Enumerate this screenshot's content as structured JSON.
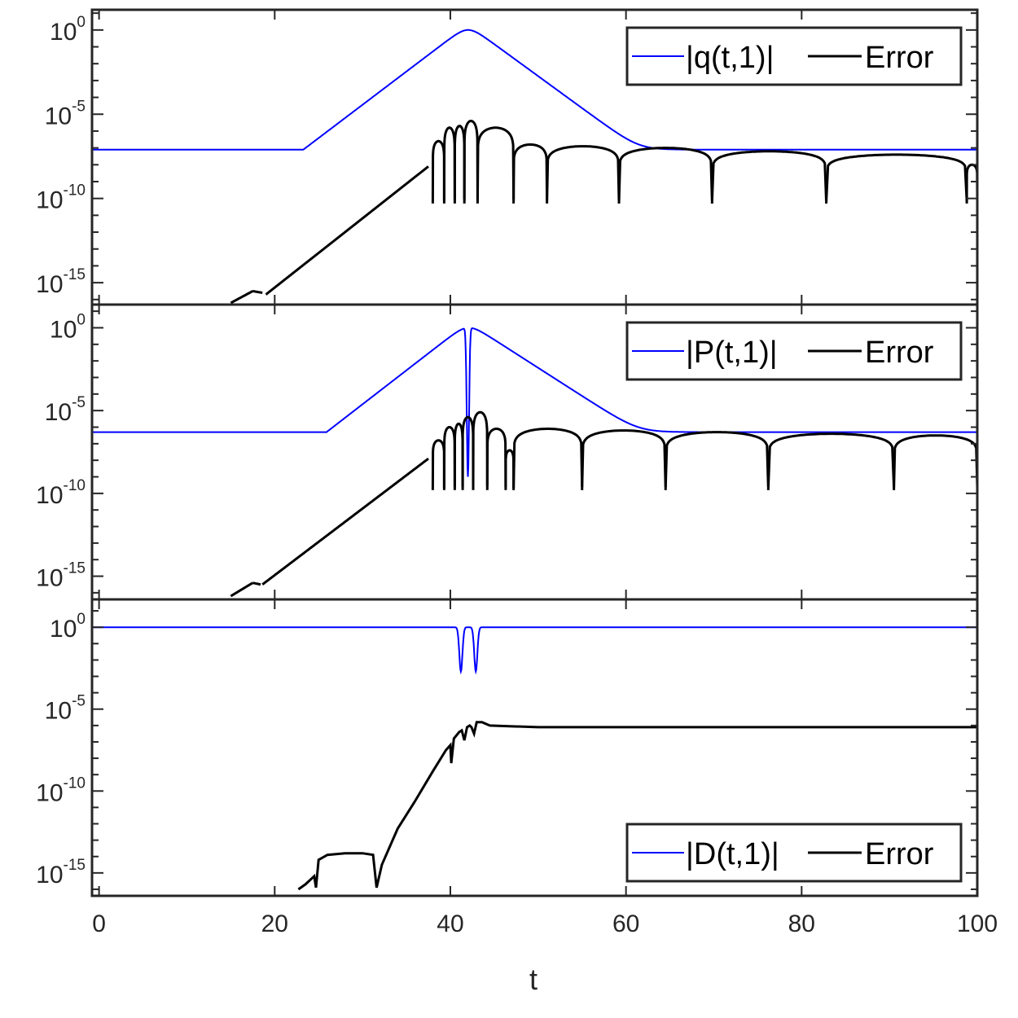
{
  "chart_data": [
    {
      "type": "line",
      "x_axis": {
        "label": "",
        "range": [
          0,
          100
        ],
        "ticks": [
          0,
          20,
          40,
          60,
          80,
          100
        ],
        "tick_labels_visible": false
      },
      "y_axis": {
        "scale": "log",
        "range": [
          1e-16,
          10
        ],
        "ticks": [
          1e-15,
          1e-10,
          1e-05,
          1
        ],
        "tick_labels": [
          {
            "base": "10",
            "exp": "-15"
          },
          {
            "base": "10",
            "exp": "-10"
          },
          {
            "base": "10",
            "exp": "-5"
          },
          {
            "base": "10",
            "exp": "0"
          }
        ]
      },
      "legend": {
        "placement": "top-right",
        "entries": [
          {
            "label": "|q(t,1)|",
            "color": "#0000ff"
          },
          {
            "label": "Error",
            "color": "#000000"
          }
        ]
      },
      "series": [
        {
          "name": "|q(t,1)|",
          "color": "#0000ff",
          "t_peak": 42,
          "peak_log10": 0,
          "slope_up": 0.395,
          "slope_down": 0.38,
          "floor_log10": -7.1,
          "dip_at": [],
          "dip_depth_log10": 0
        },
        {
          "name": "Error",
          "color": "#000000",
          "segments": [
            {
              "t_from": 15,
              "t_to": 17.5,
              "log10_from": -16.2,
              "log10_to": -15.5
            },
            {
              "t_from": 17.5,
              "t_to": 18.6,
              "log10_from": -15.5,
              "log10_to": -15.6
            },
            {
              "t_from": 19,
              "t_to": 37.5,
              "log10_from": -15.7,
              "log10_to": -8.1
            }
          ],
          "humps": [
            {
              "t_from": 38,
              "t_to": 39.3,
              "peak_log10": -6.6
            },
            {
              "t_from": 39.3,
              "t_to": 40.5,
              "peak_log10": -5.8
            },
            {
              "t_from": 40.5,
              "t_to": 41.6,
              "peak_log10": -5.7
            },
            {
              "t_from": 41.6,
              "t_to": 43.1,
              "peak_log10": -5.4
            },
            {
              "t_from": 43.1,
              "t_to": 47.2,
              "peak_log10": -5.8
            },
            {
              "t_from": 47.2,
              "t_to": 51,
              "peak_log10": -6.8
            },
            {
              "t_from": 51,
              "t_to": 59.2,
              "peak_log10": -6.9
            },
            {
              "t_from": 59.2,
              "t_to": 69.8,
              "peak_log10": -7.0
            },
            {
              "t_from": 69.8,
              "t_to": 82.8,
              "peak_log10": -7.2
            },
            {
              "t_from": 82.8,
              "t_to": 98.8,
              "peak_log10": -7.4
            },
            {
              "t_from": 98.8,
              "t_to": 100,
              "peak_log10": -8.0
            }
          ],
          "dip_bottom_log10": -10.3
        }
      ]
    },
    {
      "type": "line",
      "x_axis": {
        "label": "",
        "range": [
          0,
          100
        ],
        "ticks": [
          0,
          20,
          40,
          60,
          80,
          100
        ],
        "tick_labels_visible": false
      },
      "y_axis": {
        "scale": "log",
        "range": [
          1e-16,
          10
        ],
        "ticks": [
          1e-15,
          1e-10,
          1e-05,
          1
        ],
        "tick_labels": [
          {
            "base": "10",
            "exp": "-15"
          },
          {
            "base": "10",
            "exp": "-10"
          },
          {
            "base": "10",
            "exp": "-5"
          },
          {
            "base": "10",
            "exp": "0"
          }
        ]
      },
      "legend": {
        "placement": "top-right",
        "entries": [
          {
            "label": "|P(t,1)|",
            "color": "#0000ff"
          },
          {
            "label": "Error",
            "color": "#000000"
          }
        ]
      },
      "series": [
        {
          "name": "|P(t,1)|",
          "color": "#0000ff",
          "t_peak": 42,
          "peak_log10": 0,
          "slope_up": 0.41,
          "slope_down": 0.34,
          "floor_log10": -6.3,
          "dip_at": [
            42
          ],
          "dip_depth_log10": -9.0
        },
        {
          "name": "Error",
          "color": "#000000",
          "segments": [
            {
              "t_from": 15,
              "t_to": 17.5,
              "log10_from": -16.2,
              "log10_to": -15.4
            },
            {
              "t_from": 17.5,
              "t_to": 18.4,
              "log10_from": -15.4,
              "log10_to": -15.5
            },
            {
              "t_from": 18.6,
              "t_to": 37.5,
              "log10_from": -15.5,
              "log10_to": -7.9
            }
          ],
          "humps": [
            {
              "t_from": 38,
              "t_to": 39.3,
              "peak_log10": -6.8
            },
            {
              "t_from": 39.3,
              "t_to": 40.5,
              "peak_log10": -6.0
            },
            {
              "t_from": 40.5,
              "t_to": 41.4,
              "peak_log10": -5.8
            },
            {
              "t_from": 41.4,
              "t_to": 42.6,
              "peak_log10": -5.4
            },
            {
              "t_from": 42.6,
              "t_to": 44.2,
              "peak_log10": -5.1
            },
            {
              "t_from": 44.2,
              "t_to": 46.3,
              "peak_log10": -6.1
            },
            {
              "t_from": 46.3,
              "t_to": 47.2,
              "peak_log10": -7.4
            },
            {
              "t_from": 47.2,
              "t_to": 55,
              "peak_log10": -6.1
            },
            {
              "t_from": 55,
              "t_to": 64.5,
              "peak_log10": -6.2
            },
            {
              "t_from": 64.5,
              "t_to": 76.2,
              "peak_log10": -6.3
            },
            {
              "t_from": 76.2,
              "t_to": 90.5,
              "peak_log10": -6.4
            },
            {
              "t_from": 90.5,
              "t_to": 100,
              "peak_log10": -6.5
            }
          ],
          "dip_bottom_log10": -9.8
        }
      ]
    },
    {
      "type": "line",
      "x_axis": {
        "label": "t",
        "range": [
          0,
          100
        ],
        "ticks": [
          0,
          20,
          40,
          60,
          80,
          100
        ],
        "tick_labels": [
          "0",
          "20",
          "40",
          "60",
          "80",
          "100"
        ]
      },
      "y_axis": {
        "scale": "log",
        "range": [
          1e-16,
          10
        ],
        "ticks": [
          1e-15,
          1e-10,
          1e-05,
          1
        ],
        "tick_labels": [
          {
            "base": "10",
            "exp": "-15"
          },
          {
            "base": "10",
            "exp": "-10"
          },
          {
            "base": "10",
            "exp": "-5"
          },
          {
            "base": "10",
            "exp": "0"
          }
        ]
      },
      "legend": {
        "placement": "bottom-right",
        "entries": [
          {
            "label": "|D(t,1)|",
            "color": "#0000ff"
          },
          {
            "label": "Error",
            "color": "#000000"
          }
        ]
      },
      "series": [
        {
          "name": "|D(t,1)|",
          "color": "#0000ff",
          "level_log10": 0,
          "dips": [
            {
              "t": 41.2,
              "log10": -2.7
            },
            {
              "t": 42.9,
              "log10": -2.7
            }
          ]
        },
        {
          "name": "Error",
          "color": "#000000",
          "points": [
            [
              22.7,
              -16.0
            ],
            [
              23.5,
              -15.7
            ],
            [
              24.5,
              -15.2
            ],
            [
              24.7,
              -15.9
            ],
            [
              25.0,
              -14.2
            ],
            [
              26.0,
              -13.9
            ],
            [
              28.0,
              -13.8
            ],
            [
              30.0,
              -13.8
            ],
            [
              31.2,
              -13.9
            ],
            [
              31.6,
              -15.9
            ],
            [
              32.2,
              -14.5
            ],
            [
              34.0,
              -12.3
            ],
            [
              36.0,
              -10.6
            ],
            [
              38.0,
              -8.8
            ],
            [
              39.5,
              -7.5
            ],
            [
              40.0,
              -7.2
            ],
            [
              40.1,
              -8.3
            ],
            [
              40.4,
              -6.8
            ],
            [
              41.0,
              -6.4
            ],
            [
              41.3,
              -6.3
            ],
            [
              41.6,
              -6.9
            ],
            [
              41.9,
              -6.1
            ],
            [
              42.2,
              -6.0
            ],
            [
              42.4,
              -6.1
            ],
            [
              42.7,
              -6.5
            ],
            [
              43.0,
              -5.8
            ],
            [
              43.6,
              -5.8
            ],
            [
              44.5,
              -6.0
            ],
            [
              50.0,
              -6.1
            ],
            [
              60.0,
              -6.1
            ],
            [
              70.0,
              -6.1
            ],
            [
              80.0,
              -6.1
            ],
            [
              90.0,
              -6.1
            ],
            [
              100.0,
              -6.1
            ]
          ]
        }
      ]
    }
  ]
}
